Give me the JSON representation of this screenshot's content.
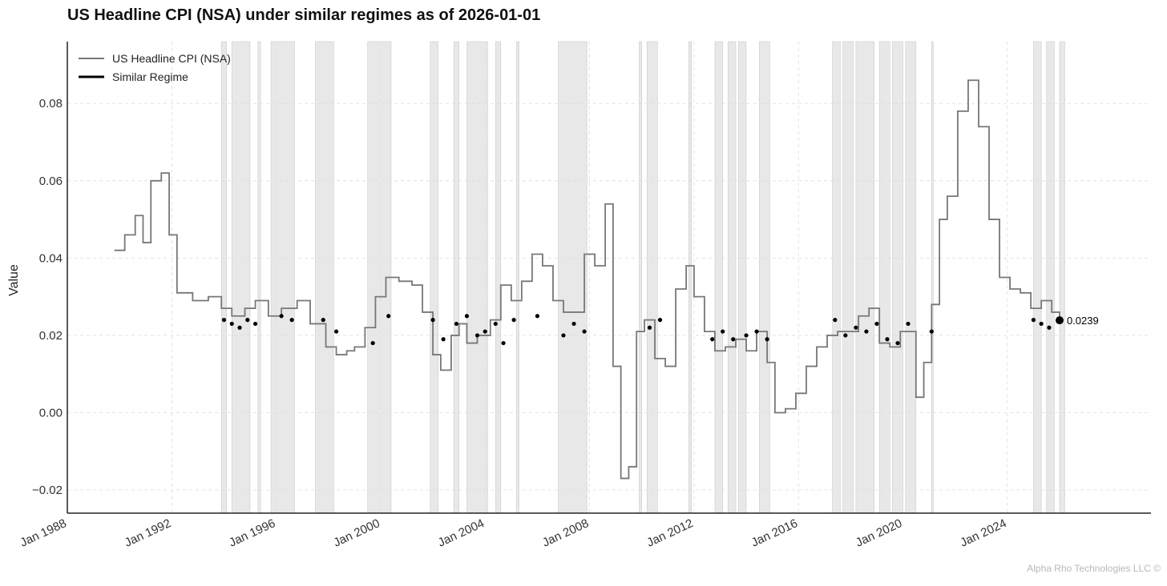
{
  "title": "US Headline CPI (NSA) under similar regimes as of 2026-01-01",
  "footer": "Alpha Rho Technologies LLC ©",
  "chart_data": {
    "type": "line",
    "title": "US Headline CPI (NSA) under similar regimes as of 2026-01-01",
    "xlabel": "",
    "ylabel": "Value",
    "xlim": [
      1988.0,
      2029.5
    ],
    "ylim": [
      -0.026,
      0.096
    ],
    "x_ticks": [
      1988,
      1992,
      1996,
      2000,
      2004,
      2008,
      2012,
      2016,
      2020,
      2024
    ],
    "x_tick_labels": [
      "Jan 1988",
      "Jan 1992",
      "Jan 1996",
      "Jan 2000",
      "Jan 2004",
      "Jan 2008",
      "Jan 2012",
      "Jan 2016",
      "Jan 2020",
      "Jan 2024"
    ],
    "y_ticks": [
      -0.02,
      0.0,
      0.02,
      0.04,
      0.06,
      0.08
    ],
    "y_tick_labels": [
      "−0.02",
      "0.00",
      "0.02",
      "0.04",
      "0.06",
      "0.08"
    ],
    "grid": true,
    "legend_position": "top-left",
    "series": [
      {
        "name": "US Headline CPI (NSA)",
        "color": "#777777",
        "x": [
          1989.8,
          1990.2,
          1990.6,
          1990.9,
          1991.2,
          1991.6,
          1991.9,
          1992.2,
          1992.8,
          1993.4,
          1993.9,
          1994.3,
          1994.8,
          1995.2,
          1995.7,
          1996.2,
          1996.8,
          1997.3,
          1997.9,
          1998.3,
          1998.7,
          1999.0,
          1999.4,
          1999.8,
          2000.2,
          2000.7,
          2001.2,
          2001.6,
          2002.0,
          2002.3,
          2002.7,
          2003.0,
          2003.3,
          2003.7,
          2004.2,
          2004.6,
          2005.0,
          2005.4,
          2005.8,
          2006.2,
          2006.6,
          2007.0,
          2007.4,
          2007.8,
          2008.2,
          2008.6,
          2008.9,
          2009.2,
          2009.5,
          2009.8,
          2010.1,
          2010.5,
          2010.9,
          2011.3,
          2011.7,
          2012.0,
          2012.4,
          2012.8,
          2013.2,
          2013.6,
          2014.0,
          2014.4,
          2014.8,
          2015.1,
          2015.5,
          2015.9,
          2016.3,
          2016.7,
          2017.1,
          2017.5,
          2017.9,
          2018.3,
          2018.7,
          2019.1,
          2019.5,
          2019.9,
          2020.2,
          2020.5,
          2020.8,
          2021.1,
          2021.4,
          2021.7,
          2022.1,
          2022.5,
          2022.9,
          2023.3,
          2023.7,
          2024.1,
          2024.5,
          2024.9,
          2025.3,
          2025.7,
          2026.0
        ],
        "y": [
          0.042,
          0.046,
          0.051,
          0.044,
          0.06,
          0.062,
          0.046,
          0.031,
          0.029,
          0.03,
          0.027,
          0.025,
          0.027,
          0.029,
          0.025,
          0.027,
          0.029,
          0.023,
          0.017,
          0.015,
          0.016,
          0.017,
          0.022,
          0.03,
          0.035,
          0.034,
          0.033,
          0.026,
          0.015,
          0.011,
          0.02,
          0.023,
          0.018,
          0.02,
          0.024,
          0.033,
          0.029,
          0.034,
          0.041,
          0.038,
          0.029,
          0.026,
          0.026,
          0.041,
          0.038,
          0.054,
          0.012,
          -0.017,
          -0.014,
          0.021,
          0.024,
          0.014,
          0.012,
          0.032,
          0.038,
          0.03,
          0.021,
          0.016,
          0.017,
          0.019,
          0.016,
          0.021,
          0.013,
          0.0,
          0.001,
          0.005,
          0.012,
          0.017,
          0.02,
          0.021,
          0.021,
          0.025,
          0.027,
          0.018,
          0.017,
          0.021,
          0.021,
          0.004,
          0.013,
          0.028,
          0.05,
          0.056,
          0.078,
          0.086,
          0.074,
          0.05,
          0.035,
          0.032,
          0.031,
          0.027,
          0.029,
          0.026,
          0.0239
        ]
      },
      {
        "name": "Similar Regime",
        "color": "#000000",
        "x": [
          1994.0,
          1994.3,
          1994.6,
          1994.9,
          1995.2,
          1996.2,
          1996.6,
          1997.8,
          1998.3,
          1999.7,
          2000.3,
          2002.0,
          2002.4,
          2002.9,
          2003.3,
          2003.7,
          2004.0,
          2004.4,
          2004.7,
          2005.1,
          2006.0,
          2007.0,
          2007.4,
          2007.8,
          2010.3,
          2010.7,
          2012.7,
          2013.1,
          2013.5,
          2014.0,
          2014.4,
          2014.8,
          2017.4,
          2017.8,
          2018.2,
          2018.6,
          2019.0,
          2019.4,
          2019.8,
          2020.2,
          2021.1,
          2025.0,
          2025.3,
          2025.6,
          2026.0
        ],
        "y": [
          0.024,
          0.023,
          0.022,
          0.024,
          0.023,
          0.025,
          0.024,
          0.024,
          0.021,
          0.018,
          0.025,
          0.024,
          0.019,
          0.023,
          0.025,
          0.02,
          0.021,
          0.023,
          0.018,
          0.024,
          0.025,
          0.02,
          0.023,
          0.021,
          0.022,
          0.024,
          0.019,
          0.021,
          0.019,
          0.02,
          0.021,
          0.019,
          0.024,
          0.02,
          0.022,
          0.021,
          0.023,
          0.019,
          0.018,
          0.023,
          0.021,
          0.024,
          0.023,
          0.022,
          0.0239
        ]
      }
    ],
    "regime_periods": [
      [
        1993.9,
        1994.1
      ],
      [
        1994.3,
        1995.0
      ],
      [
        1995.3,
        1995.4
      ],
      [
        1995.8,
        1996.7
      ],
      [
        1997.5,
        1998.2
      ],
      [
        1999.5,
        2000.4
      ],
      [
        2001.9,
        2002.2
      ],
      [
        2002.8,
        2003.0
      ],
      [
        2003.3,
        2004.1
      ],
      [
        2004.4,
        2004.6
      ],
      [
        2005.2,
        2005.3
      ],
      [
        2006.8,
        2007.9
      ],
      [
        2009.9,
        2010.0
      ],
      [
        2010.2,
        2010.6
      ],
      [
        2011.8,
        2011.9
      ],
      [
        2012.8,
        2013.1
      ],
      [
        2013.3,
        2013.6
      ],
      [
        2013.7,
        2014.0
      ],
      [
        2014.5,
        2014.9
      ],
      [
        2017.3,
        2017.6
      ],
      [
        2017.7,
        2018.1
      ],
      [
        2018.2,
        2018.9
      ],
      [
        2019.1,
        2019.5
      ],
      [
        2019.6,
        2020.0
      ],
      [
        2020.1,
        2020.5
      ],
      [
        2021.1,
        2021.15
      ],
      [
        2025.0,
        2025.3
      ],
      [
        2025.5,
        2025.8
      ],
      [
        2026.0,
        2026.2
      ]
    ],
    "last_value": {
      "x": 2026.0,
      "y": 0.0239,
      "label": "0.0239"
    }
  }
}
